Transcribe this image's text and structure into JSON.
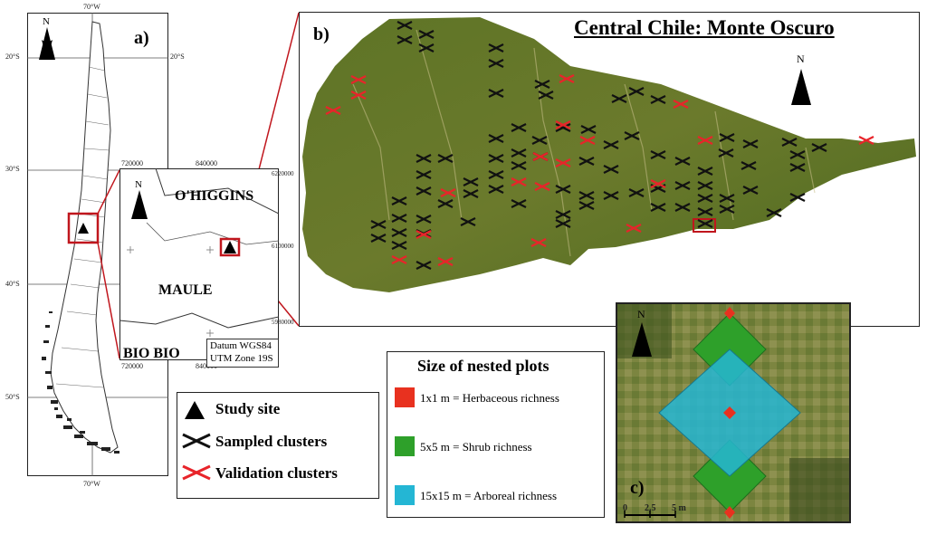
{
  "panel_a": {
    "label": "a)",
    "north": "N",
    "ticks_top": "70°W",
    "ticks_bottom": "70°W",
    "lat_left": [
      "20°S",
      "30°S",
      "40°S",
      "50°S"
    ],
    "lat_right": [
      "20°S"
    ]
  },
  "inset": {
    "regions": [
      "O'HIGGINS",
      "MAULE",
      "BIO BIO"
    ],
    "north": "N",
    "x_ticks_top": [
      "720000",
      "840000"
    ],
    "x_ticks_bottom": [
      "720000",
      "840000"
    ],
    "y_ticks_right": [
      "6220000",
      "6100000",
      "5980000"
    ],
    "datum_line1": "Datum WGS84",
    "datum_line2": "UTM Zone 19S"
  },
  "panel_b": {
    "label": "b)",
    "title": "Central Chile: Monte Oscuro",
    "north": "N"
  },
  "legend_clusters": {
    "items": [
      {
        "symbol": "triangle",
        "label": "Study site"
      },
      {
        "symbol": "black-x",
        "label": "Sampled clusters"
      },
      {
        "symbol": "red-x",
        "label": "Validation clusters"
      }
    ]
  },
  "legend_plots": {
    "title": "Size of nested plots",
    "items": [
      {
        "color": "#e8311f",
        "label": "1x1 m = Herbaceous richness"
      },
      {
        "color": "#2ea02a",
        "label": "5x5 m = Shrub richness"
      },
      {
        "color": "#24b6d4",
        "label": "15x15 m = Arboreal richness"
      }
    ]
  },
  "panel_c": {
    "label": "c)",
    "north": "N",
    "scale_labels": [
      "0",
      "2.5",
      "5 m"
    ]
  },
  "colors": {
    "accent_red": "#c0161d",
    "sampled": "#111111",
    "validation": "#e8242a",
    "terrain_dark": "#4f6a1f",
    "terrain_light": "#8a8a3c"
  }
}
